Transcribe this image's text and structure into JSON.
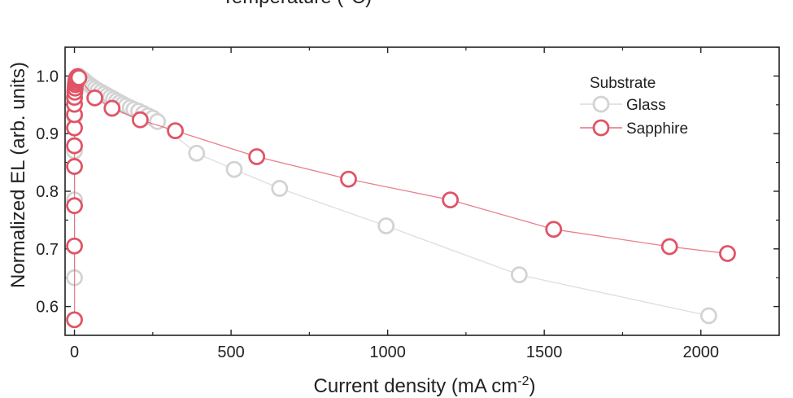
{
  "chart_data": {
    "type": "scatter",
    "top_title": "Temperature (°C)",
    "xlabel_main": "Current density (mA cm",
    "xlabel_sup": "-2",
    "xlabel_end": ")",
    "ylabel": "Normalized EL (arb. units)",
    "xlim": [
      -30,
      2250
    ],
    "ylim": [
      0.55,
      1.05
    ],
    "xticks": [
      0,
      500,
      1000,
      1500,
      2000
    ],
    "yticks": [
      0.6,
      0.7,
      0.8,
      0.9,
      1.0
    ],
    "xtick_labels": [
      "0",
      "500",
      "1000",
      "1500",
      "2000"
    ],
    "ytick_labels": [
      "0.6",
      "0.7",
      "0.8",
      "0.9",
      "1.0"
    ],
    "legend_title": "Substrate",
    "legend_position": "top-right",
    "series": [
      {
        "name": "Glass",
        "color": "#d3d3d3",
        "x": [
          0,
          0,
          0,
          0,
          0,
          1,
          2,
          3,
          5,
          8,
          12,
          16,
          20,
          25,
          30,
          36,
          42,
          50,
          58,
          66,
          75,
          85,
          95,
          105,
          115,
          125,
          135,
          145,
          155,
          165,
          178,
          190,
          205,
          220,
          235,
          250,
          265,
          390,
          510,
          655,
          995,
          1420,
          2025
        ],
        "y": [
          0.65,
          0.785,
          0.87,
          0.93,
          0.96,
          0.975,
          0.985,
          0.99,
          0.995,
          0.998,
          1.0,
          0.999,
          0.997,
          0.995,
          0.993,
          0.99,
          0.987,
          0.984,
          0.981,
          0.978,
          0.975,
          0.972,
          0.969,
          0.966,
          0.963,
          0.96,
          0.957,
          0.954,
          0.951,
          0.948,
          0.945,
          0.942,
          0.939,
          0.935,
          0.931,
          0.927,
          0.921,
          0.866,
          0.838,
          0.805,
          0.74,
          0.655,
          0.584
        ]
      },
      {
        "name": "Sapphire",
        "color": "#e05466",
        "x": [
          0,
          0,
          0,
          0,
          0,
          0,
          0,
          0,
          0,
          1,
          2,
          3,
          4,
          5,
          6,
          8,
          10,
          14,
          65,
          120,
          210,
          322,
          582,
          875,
          1200,
          1530,
          1900,
          2085
        ],
        "y": [
          0.577,
          0.705,
          0.775,
          0.843,
          0.879,
          0.91,
          0.933,
          0.951,
          0.963,
          0.972,
          0.979,
          0.985,
          0.989,
          0.993,
          0.996,
          0.998,
          0.999,
          0.997,
          0.962,
          0.944,
          0.924,
          0.905,
          0.86,
          0.821,
          0.785,
          0.734,
          0.704,
          0.692
        ]
      }
    ]
  }
}
